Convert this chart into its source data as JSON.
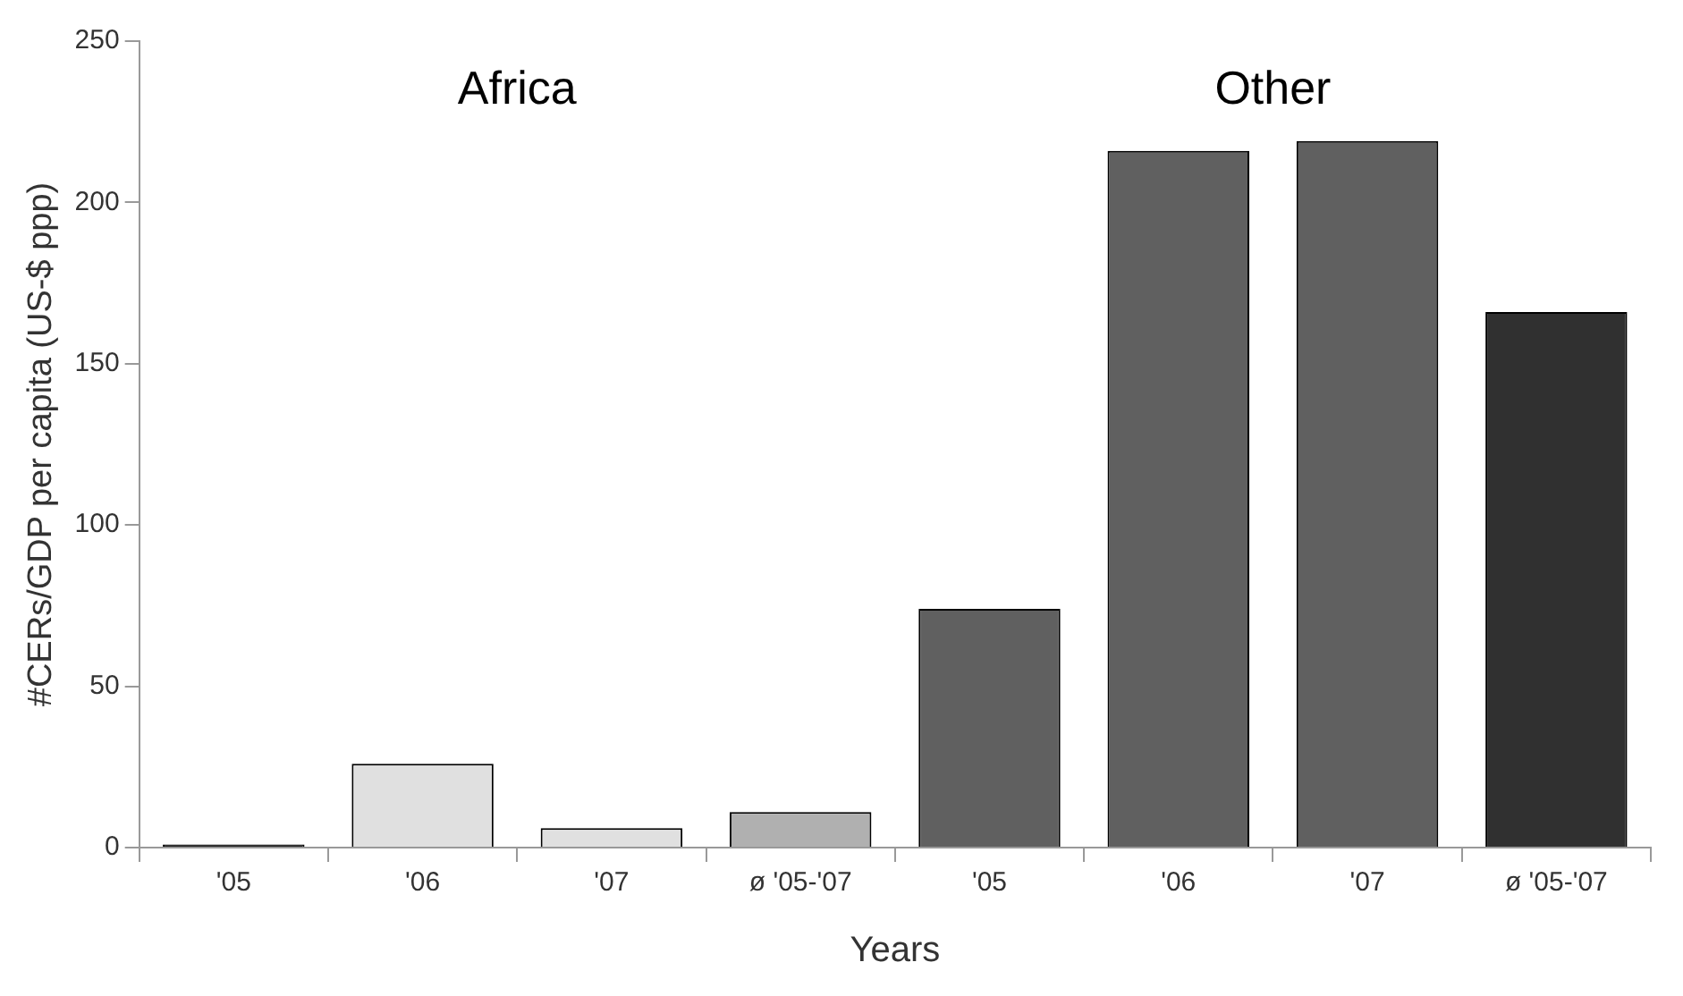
{
  "chart_data": {
    "type": "bar",
    "xlabel": "Years",
    "ylabel": "#CERs/GDP per capita (US-$ ppp)",
    "categories": [
      "'05",
      "'06",
      "'07",
      "ø '05-'07",
      "'05",
      "'06",
      "'07",
      "ø '05-'07"
    ],
    "values": [
      1,
      26,
      6,
      11,
      74,
      216,
      219,
      166
    ],
    "colors": [
      "#202020",
      "#e0e0e0",
      "#e0e0e0",
      "#b0b0b0",
      "#606060",
      "#606060",
      "#606060",
      "#303030"
    ],
    "ylim": [
      0,
      250
    ],
    "yticks": [
      0,
      50,
      100,
      150,
      200,
      250
    ],
    "grid": false,
    "legend": false,
    "annotations": [
      "Africa",
      "Other"
    ]
  }
}
